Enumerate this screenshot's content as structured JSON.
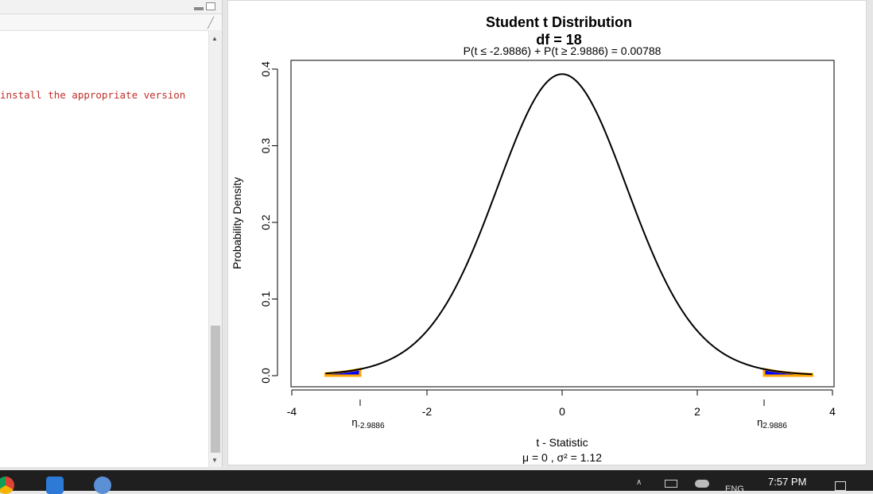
{
  "console": {
    "message": "install the appropriate version"
  },
  "icons": {
    "broom": "broom-icon",
    "scroll_up": "scroll-up-icon",
    "scroll_down": "scroll-down-icon"
  },
  "taskbar": {
    "time": "7:57 PM",
    "lang": "ENG"
  },
  "chart_data": {
    "type": "line",
    "title": "Student t Distribution",
    "subtitle": "df  =  18",
    "probability_text": "P(t ≤ -2.9886) + P(t ≥ 2.9886) = 0.00788",
    "xlabel": "t - Statistic",
    "xlabel_sub": "μ =  0 , σ² =  1.12",
    "ylabel": "Probability Density",
    "df": 18,
    "critical_value": 2.9886,
    "xlim": [
      -4,
      4
    ],
    "ylim": [
      0,
      0.4
    ],
    "xticks": [
      "-4",
      "-2",
      "0",
      "2",
      "4"
    ],
    "yticks": [
      "0.0",
      "0.1",
      "0.2",
      "0.3",
      "0.4"
    ],
    "critical_labels": [
      {
        "symbol": "η",
        "sub": "-2.9886"
      },
      {
        "symbol": "η",
        "sub": "2.9886"
      }
    ],
    "grid": false,
    "colors": {
      "curve": "#000000",
      "tail_fill": "#0000ff",
      "tail_border": "#ffa500"
    }
  }
}
